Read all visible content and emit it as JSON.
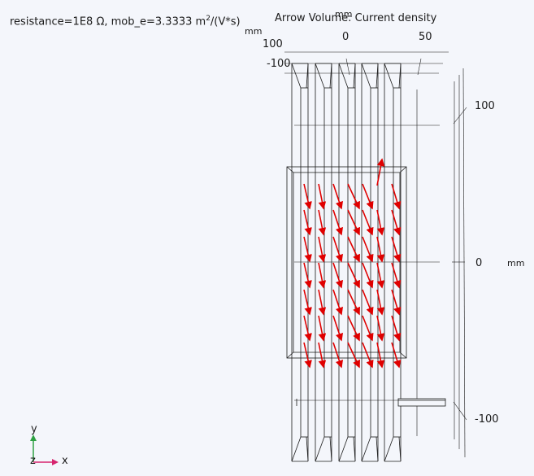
{
  "header": {
    "parameters_prefix": "resistance=1E8 Ω, mob_e=3.3333 m",
    "parameters_sup": "2",
    "parameters_suffix": "/(V*s)",
    "plot_title": "Arrow Volume: Current density"
  },
  "axes": {
    "x_unit": "mm",
    "x_ticks": [
      "0",
      "50"
    ],
    "y_unit": "mm",
    "y_ticks": [
      "100",
      "0",
      "-100"
    ],
    "z_unit": "mm",
    "z_ticks": [
      "100",
      "-100"
    ]
  },
  "triad": {
    "y": "y",
    "x": "x",
    "z": "z"
  },
  "colors": {
    "background": "#f4f6fb",
    "edges": "#1a1a1a",
    "arrows": "#e00000",
    "triad_y": "#2ea043",
    "triad_x": "#d6246e"
  }
}
